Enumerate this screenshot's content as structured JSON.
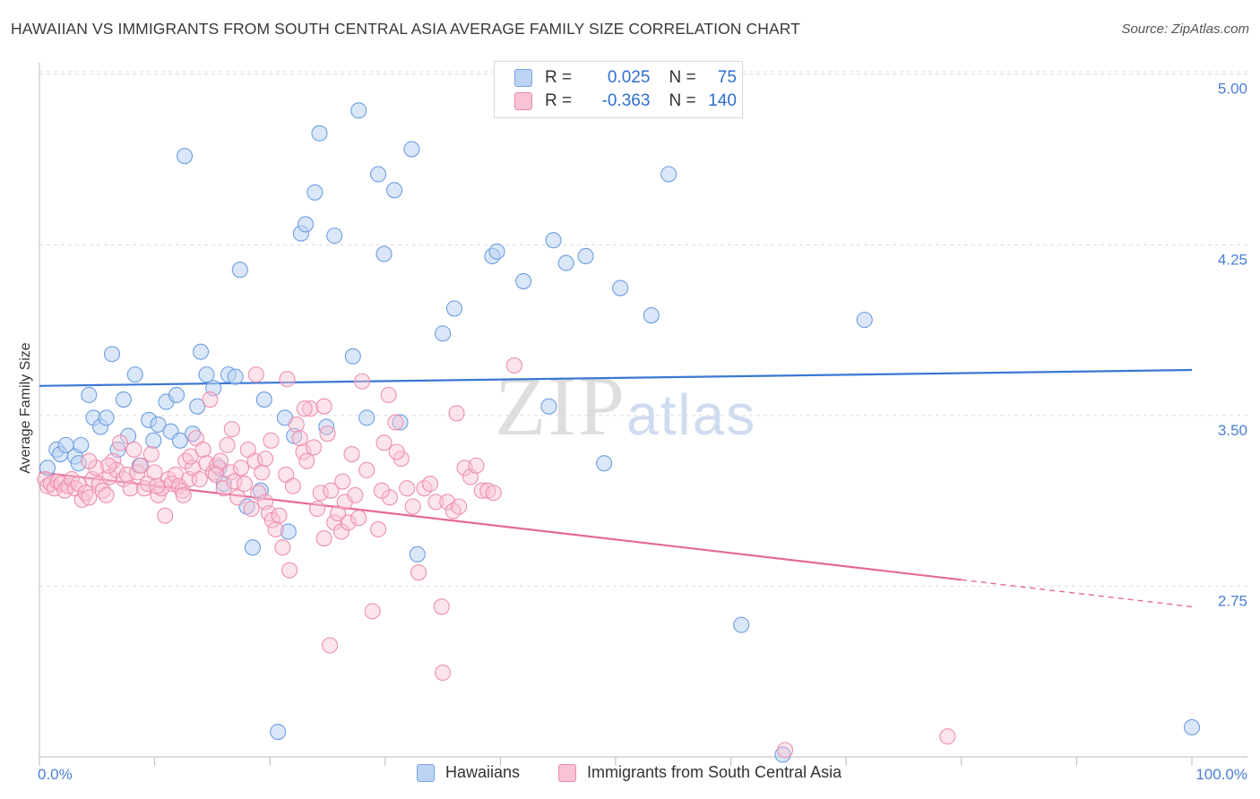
{
  "title": "HAWAIIAN VS IMMIGRANTS FROM SOUTH CENTRAL ASIA AVERAGE FAMILY SIZE CORRELATION CHART",
  "source": "Source: ZipAtlas.com",
  "watermark": {
    "zip": "ZIP",
    "atlas": "atlas"
  },
  "legend": {
    "rows": [
      {
        "r_label": "R =",
        "r_value": "0.025",
        "n_label": "N =",
        "n_value": "75"
      },
      {
        "r_label": "R =",
        "r_value": "-0.363",
        "n_label": "N =",
        "n_value": "140"
      }
    ]
  },
  "bottom_legend": [
    "Hawaiians",
    "Immigrants from South Central Asia"
  ],
  "colors": {
    "blue": "#3a78d4",
    "blue_fill": "#bcd3f3",
    "pink": "#e46a95",
    "pink_fill": "#f8c3d3",
    "tick": "#4a7fd6"
  },
  "chart_data": {
    "type": "scatter",
    "title": "HAWAIIAN VS IMMIGRANTS FROM SOUTH CENTRAL ASIA AVERAGE FAMILY SIZE CORRELATION CHART",
    "xlabel": "",
    "ylabel": "Average Family Size",
    "xlim": [
      0,
      100
    ],
    "ylim": [
      2.0,
      5.05
    ],
    "x_tick_labels": [
      "0.0%",
      "100.0%"
    ],
    "y_ticks": [
      2.75,
      3.5,
      4.25,
      5.0
    ],
    "y_tick_labels": [
      "2.75",
      "3.50",
      "4.25",
      "5.00"
    ],
    "series": [
      {
        "name": "Hawaiians",
        "trend": {
          "x": [
            0,
            100
          ],
          "y": [
            3.63,
            3.7
          ],
          "dashed_from": null
        },
        "points": [
          [
            0.7,
            3.27
          ],
          [
            1.5,
            3.35
          ],
          [
            1.8,
            3.33
          ],
          [
            2.3,
            3.37
          ],
          [
            3.1,
            3.32
          ],
          [
            3.4,
            3.29
          ],
          [
            3.6,
            3.37
          ],
          [
            4.3,
            3.59
          ],
          [
            4.7,
            3.49
          ],
          [
            5.3,
            3.45
          ],
          [
            5.8,
            3.49
          ],
          [
            6.3,
            3.77
          ],
          [
            6.8,
            3.35
          ],
          [
            7.3,
            3.57
          ],
          [
            7.7,
            3.41
          ],
          [
            8.3,
            3.68
          ],
          [
            8.7,
            3.28
          ],
          [
            9.5,
            3.48
          ],
          [
            9.9,
            3.39
          ],
          [
            10.3,
            3.46
          ],
          [
            11.0,
            3.56
          ],
          [
            11.4,
            3.43
          ],
          [
            11.9,
            3.59
          ],
          [
            12.2,
            3.39
          ],
          [
            12.6,
            4.64
          ],
          [
            13.3,
            3.42
          ],
          [
            13.7,
            3.54
          ],
          [
            14.0,
            3.78
          ],
          [
            14.5,
            3.68
          ],
          [
            15.1,
            3.62
          ],
          [
            15.6,
            3.27
          ],
          [
            16.0,
            3.2
          ],
          [
            16.4,
            3.68
          ],
          [
            17.0,
            3.67
          ],
          [
            17.4,
            4.14
          ],
          [
            18.0,
            3.1
          ],
          [
            18.5,
            2.92
          ],
          [
            19.5,
            3.57
          ],
          [
            20.7,
            2.11
          ],
          [
            21.3,
            3.49
          ],
          [
            21.6,
            2.99
          ],
          [
            22.1,
            3.41
          ],
          [
            22.7,
            4.3
          ],
          [
            23.1,
            4.34
          ],
          [
            23.9,
            4.48
          ],
          [
            24.3,
            4.74
          ],
          [
            24.9,
            3.45
          ],
          [
            25.6,
            4.29
          ],
          [
            27.2,
            3.76
          ],
          [
            27.7,
            4.84
          ],
          [
            28.4,
            3.49
          ],
          [
            29.4,
            4.56
          ],
          [
            29.9,
            4.21
          ],
          [
            30.8,
            4.49
          ],
          [
            31.3,
            3.47
          ],
          [
            32.3,
            4.67
          ],
          [
            32.8,
            2.89
          ],
          [
            35.0,
            3.86
          ],
          [
            36.0,
            3.97
          ],
          [
            39.3,
            4.2
          ],
          [
            39.7,
            4.22
          ],
          [
            42.0,
            4.09
          ],
          [
            44.2,
            3.54
          ],
          [
            44.6,
            4.27
          ],
          [
            45.7,
            4.17
          ],
          [
            47.4,
            4.2
          ],
          [
            49.0,
            3.29
          ],
          [
            50.4,
            4.06
          ],
          [
            53.1,
            3.94
          ],
          [
            54.6,
            4.56
          ],
          [
            60.9,
            2.58
          ],
          [
            64.5,
            2.01
          ],
          [
            71.6,
            3.92
          ],
          [
            100,
            2.13
          ],
          [
            19.2,
            3.17
          ]
        ]
      },
      {
        "name": "Immigrants from South Central Asia",
        "trend": {
          "x": [
            0,
            100
          ],
          "y": [
            3.25,
            2.66
          ],
          "dashed_from": 80.0
        },
        "points": [
          [
            0.5,
            3.22
          ],
          [
            0.7,
            3.19
          ],
          [
            1.0,
            3.2
          ],
          [
            1.3,
            3.18
          ],
          [
            1.6,
            3.21
          ],
          [
            1.9,
            3.2
          ],
          [
            2.2,
            3.17
          ],
          [
            2.5,
            3.19
          ],
          [
            2.8,
            3.22
          ],
          [
            3.1,
            3.18
          ],
          [
            3.4,
            3.2
          ],
          [
            3.7,
            3.13
          ],
          [
            4.0,
            3.16
          ],
          [
            4.3,
            3.14
          ],
          [
            4.6,
            3.22
          ],
          [
            4.9,
            3.27
          ],
          [
            5.2,
            3.2
          ],
          [
            5.5,
            3.17
          ],
          [
            5.8,
            3.15
          ],
          [
            6.1,
            3.23
          ],
          [
            6.4,
            3.3
          ],
          [
            6.7,
            3.26
          ],
          [
            7.0,
            3.38
          ],
          [
            7.3,
            3.22
          ],
          [
            7.6,
            3.24
          ],
          [
            7.9,
            3.18
          ],
          [
            8.2,
            3.35
          ],
          [
            8.5,
            3.25
          ],
          [
            8.8,
            3.28
          ],
          [
            9.1,
            3.18
          ],
          [
            9.4,
            3.2
          ],
          [
            9.7,
            3.33
          ],
          [
            10.0,
            3.25
          ],
          [
            10.3,
            3.15
          ],
          [
            10.6,
            3.18
          ],
          [
            10.9,
            3.06
          ],
          [
            11.2,
            3.22
          ],
          [
            11.5,
            3.2
          ],
          [
            11.8,
            3.24
          ],
          [
            12.1,
            3.19
          ],
          [
            12.4,
            3.17
          ],
          [
            12.7,
            3.3
          ],
          [
            13.0,
            3.22
          ],
          [
            13.3,
            3.27
          ],
          [
            13.6,
            3.4
          ],
          [
            13.9,
            3.22
          ],
          [
            14.2,
            3.35
          ],
          [
            14.5,
            3.29
          ],
          [
            14.8,
            3.57
          ],
          [
            15.1,
            3.25
          ],
          [
            15.4,
            3.28
          ],
          [
            15.7,
            3.3
          ],
          [
            16.0,
            3.18
          ],
          [
            16.3,
            3.37
          ],
          [
            16.6,
            3.25
          ],
          [
            16.9,
            3.21
          ],
          [
            17.2,
            3.14
          ],
          [
            17.5,
            3.27
          ],
          [
            17.8,
            3.2
          ],
          [
            18.1,
            3.35
          ],
          [
            18.4,
            3.09
          ],
          [
            18.7,
            3.3
          ],
          [
            19.0,
            3.16
          ],
          [
            19.3,
            3.25
          ],
          [
            19.6,
            3.12
          ],
          [
            19.9,
            3.07
          ],
          [
            20.2,
            3.04
          ],
          [
            20.5,
            3.0
          ],
          [
            20.8,
            3.06
          ],
          [
            21.1,
            2.92
          ],
          [
            21.4,
            3.24
          ],
          [
            21.7,
            2.82
          ],
          [
            22.0,
            3.19
          ],
          [
            22.3,
            3.46
          ],
          [
            22.6,
            3.4
          ],
          [
            22.9,
            3.34
          ],
          [
            23.2,
            3.3
          ],
          [
            23.5,
            3.53
          ],
          [
            23.8,
            3.36
          ],
          [
            24.1,
            3.09
          ],
          [
            24.4,
            3.16
          ],
          [
            24.7,
            2.96
          ],
          [
            25.0,
            3.42
          ],
          [
            25.3,
            3.17
          ],
          [
            25.6,
            3.03
          ],
          [
            25.9,
            3.07
          ],
          [
            26.2,
            2.99
          ],
          [
            26.5,
            3.12
          ],
          [
            26.8,
            3.03
          ],
          [
            27.1,
            3.33
          ],
          [
            27.4,
            3.15
          ],
          [
            27.7,
            3.05
          ],
          [
            28.0,
            3.65
          ],
          [
            28.4,
            3.26
          ],
          [
            28.9,
            2.64
          ],
          [
            29.4,
            3.0
          ],
          [
            29.9,
            3.38
          ],
          [
            30.4,
            3.14
          ],
          [
            30.9,
            3.47
          ],
          [
            31.4,
            3.31
          ],
          [
            31.9,
            3.18
          ],
          [
            32.4,
            3.1
          ],
          [
            32.9,
            2.81
          ],
          [
            33.4,
            3.18
          ],
          [
            33.9,
            3.2
          ],
          [
            34.4,
            3.12
          ],
          [
            34.9,
            2.66
          ],
          [
            35.4,
            3.12
          ],
          [
            35.9,
            3.08
          ],
          [
            36.4,
            3.1
          ],
          [
            36.9,
            3.27
          ],
          [
            37.4,
            3.23
          ],
          [
            37.9,
            3.28
          ],
          [
            38.4,
            3.17
          ],
          [
            38.9,
            3.17
          ],
          [
            39.4,
            3.16
          ],
          [
            19.6,
            3.31
          ],
          [
            15.3,
            3.24
          ],
          [
            10.2,
            3.19
          ],
          [
            18.8,
            3.68
          ],
          [
            21.5,
            3.66
          ],
          [
            20.1,
            3.39
          ],
          [
            30.3,
            3.59
          ],
          [
            36.2,
            3.51
          ],
          [
            26.3,
            3.21
          ],
          [
            29.7,
            3.17
          ],
          [
            24.7,
            3.54
          ],
          [
            41.2,
            3.72
          ],
          [
            31.0,
            3.34
          ],
          [
            13.1,
            3.32
          ],
          [
            16.7,
            3.44
          ],
          [
            23.0,
            3.53
          ],
          [
            12.5,
            3.15
          ],
          [
            35.0,
            2.37
          ],
          [
            25.2,
            2.49
          ],
          [
            64.7,
            2.03
          ],
          [
            78.8,
            2.09
          ],
          [
            4.3,
            3.3
          ],
          [
            6.0,
            3.28
          ]
        ]
      }
    ]
  }
}
